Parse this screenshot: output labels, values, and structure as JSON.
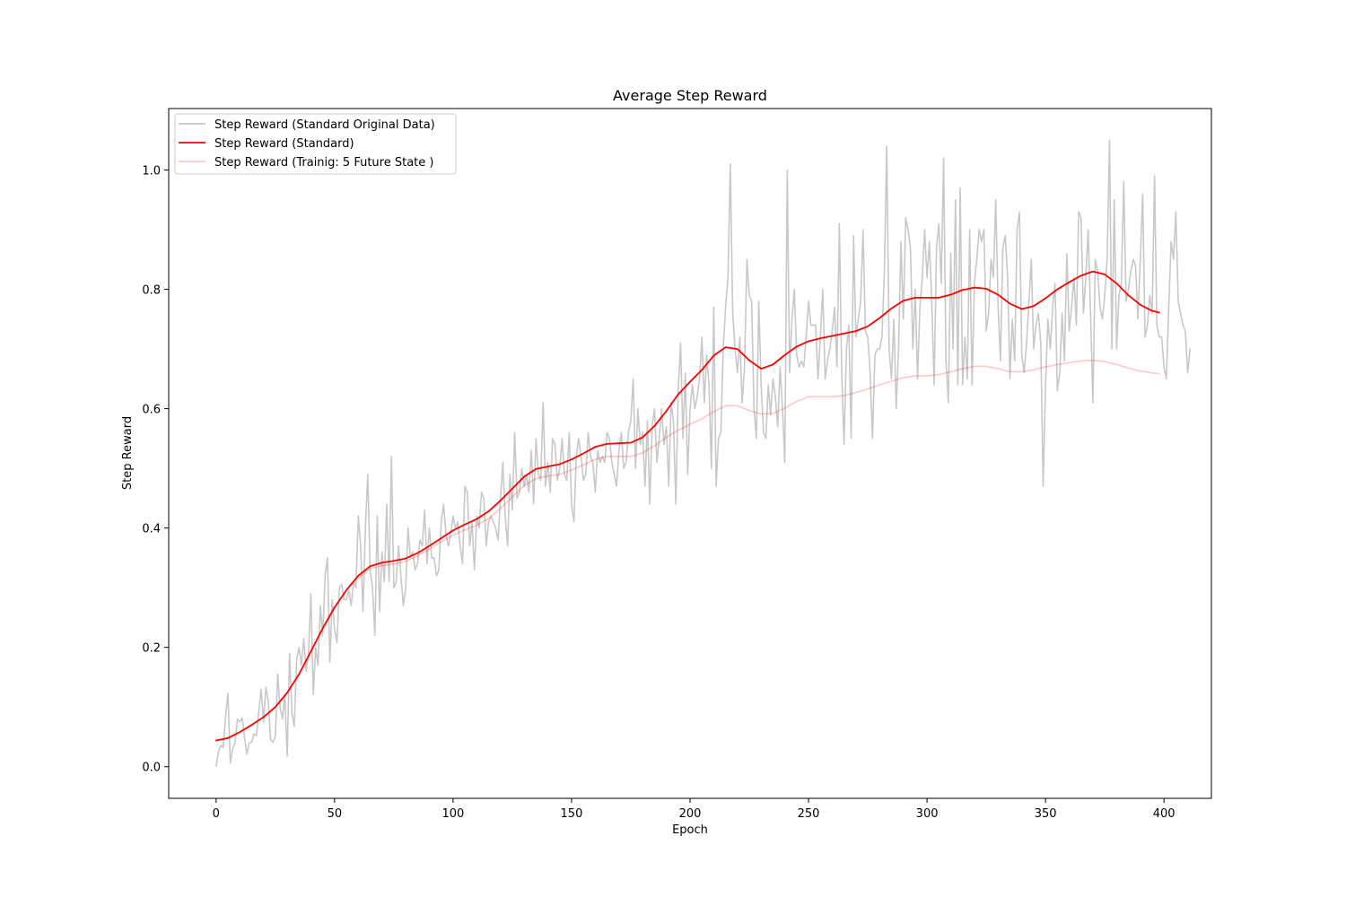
{
  "chart_data": {
    "type": "line",
    "title": "Average Step Reward",
    "xlabel": "Epoch",
    "ylabel": "Step Reward",
    "xlim": [
      -20,
      420
    ],
    "ylim": [
      -0.053,
      1.103
    ],
    "xticks": [
      0,
      50,
      100,
      150,
      200,
      250,
      300,
      350,
      400
    ],
    "xtick_labels": [
      "0",
      "50",
      "100",
      "150",
      "200",
      "250",
      "300",
      "350",
      "400"
    ],
    "yticks": [
      0.0,
      0.2,
      0.4,
      0.6,
      0.8,
      1.0
    ],
    "ytick_labels": [
      "0.0",
      "0.2",
      "0.4",
      "0.6",
      "0.8",
      "1.0"
    ],
    "grid": false,
    "legend_position": "upper-left",
    "series": [
      {
        "name": "Step Reward (Standard Original Data)",
        "color": "#c8c8c8",
        "x_start": 0,
        "x_step": 1,
        "values": [
          0.001,
          0.025,
          0.036,
          0.032,
          0.085,
          0.123,
          0.006,
          0.03,
          0.04,
          0.08,
          0.075,
          0.082,
          0.05,
          0.021,
          0.04,
          0.041,
          0.055,
          0.052,
          0.091,
          0.13,
          0.075,
          0.133,
          0.11,
          0.045,
          0.041,
          0.05,
          0.155,
          0.1,
          0.08,
          0.12,
          0.018,
          0.19,
          0.09,
          0.068,
          0.18,
          0.2,
          0.17,
          0.215,
          0.16,
          0.19,
          0.29,
          0.121,
          0.2,
          0.17,
          0.27,
          0.22,
          0.32,
          0.35,
          0.175,
          0.28,
          0.23,
          0.208,
          0.3,
          0.306,
          0.28,
          0.28,
          0.295,
          0.27,
          0.31,
          0.3,
          0.42,
          0.37,
          0.26,
          0.4,
          0.49,
          0.33,
          0.3,
          0.22,
          0.42,
          0.26,
          0.36,
          0.31,
          0.44,
          0.31,
          0.52,
          0.3,
          0.31,
          0.37,
          0.32,
          0.27,
          0.3,
          0.4,
          0.35,
          0.36,
          0.33,
          0.34,
          0.38,
          0.37,
          0.43,
          0.34,
          0.4,
          0.35,
          0.35,
          0.32,
          0.33,
          0.41,
          0.44,
          0.39,
          0.37,
          0.39,
          0.42,
          0.4,
          0.41,
          0.37,
          0.34,
          0.47,
          0.46,
          0.37,
          0.41,
          0.33,
          0.42,
          0.4,
          0.46,
          0.45,
          0.37,
          0.41,
          0.42,
          0.41,
          0.4,
          0.38,
          0.45,
          0.51,
          0.42,
          0.37,
          0.49,
          0.43,
          0.56,
          0.45,
          0.46,
          0.5,
          0.47,
          0.49,
          0.46,
          0.53,
          0.44,
          0.55,
          0.49,
          0.48,
          0.61,
          0.47,
          0.51,
          0.46,
          0.55,
          0.54,
          0.48,
          0.5,
          0.55,
          0.49,
          0.48,
          0.56,
          0.44,
          0.41,
          0.52,
          0.55,
          0.52,
          0.48,
          0.49,
          0.56,
          0.52,
          0.51,
          0.46,
          0.53,
          0.51,
          0.52,
          0.51,
          0.56,
          0.55,
          0.51,
          0.49,
          0.47,
          0.53,
          0.56,
          0.5,
          0.51,
          0.56,
          0.58,
          0.65,
          0.5,
          0.6,
          0.54,
          0.56,
          0.47,
          0.58,
          0.44,
          0.57,
          0.6,
          0.51,
          0.55,
          0.6,
          0.54,
          0.57,
          0.47,
          0.61,
          0.58,
          0.44,
          0.63,
          0.71,
          0.55,
          0.66,
          0.49,
          0.6,
          0.64,
          0.6,
          0.62,
          0.65,
          0.72,
          0.61,
          0.69,
          0.64,
          0.5,
          0.77,
          0.47,
          0.55,
          0.56,
          0.7,
          0.77,
          0.82,
          1.01,
          0.76,
          0.7,
          0.66,
          0.72,
          0.61,
          0.67,
          0.85,
          0.79,
          0.78,
          0.6,
          0.55,
          0.78,
          0.64,
          0.56,
          0.55,
          0.64,
          0.59,
          0.65,
          0.62,
          0.57,
          0.67,
          0.6,
          0.51,
          1.0,
          0.66,
          0.75,
          0.8,
          0.69,
          0.67,
          0.68,
          0.67,
          0.72,
          0.78,
          0.74,
          0.74,
          0.74,
          0.65,
          0.72,
          0.8,
          0.65,
          0.68,
          0.7,
          0.73,
          0.77,
          0.67,
          0.91,
          0.66,
          0.54,
          0.7,
          0.74,
          0.55,
          0.89,
          0.72,
          0.75,
          0.78,
          0.9,
          0.73,
          0.72,
          0.66,
          0.55,
          0.69,
          0.7,
          0.7,
          0.72,
          0.83,
          1.04,
          0.7,
          0.65,
          0.75,
          0.6,
          0.7,
          0.88,
          0.75,
          0.92,
          0.9,
          0.87,
          0.7,
          0.8,
          0.65,
          0.77,
          0.82,
          0.9,
          0.82,
          0.88,
          0.78,
          0.64,
          0.87,
          0.91,
          0.81,
          1.02,
          0.68,
          0.61,
          0.86,
          0.7,
          0.95,
          0.64,
          0.97,
          0.64,
          0.72,
          0.65,
          0.9,
          0.64,
          0.81,
          0.85,
          0.9,
          0.88,
          0.9,
          0.73,
          0.76,
          0.85,
          0.82,
          0.95,
          0.77,
          0.68,
          0.87,
          0.89,
          0.82,
          0.65,
          0.75,
          0.68,
          0.9,
          0.93,
          0.69,
          0.66,
          0.71,
          0.78,
          0.85,
          0.7,
          0.74,
          0.76,
          0.71,
          0.47,
          0.64,
          0.75,
          0.7,
          0.77,
          0.81,
          0.63,
          0.66,
          0.76,
          0.68,
          0.86,
          0.73,
          0.77,
          0.82,
          0.74,
          0.93,
          0.92,
          0.76,
          0.82,
          0.9,
          0.76,
          0.61,
          0.85,
          0.83,
          0.77,
          0.75,
          0.79,
          0.85,
          1.05,
          0.7,
          0.95,
          0.7,
          0.79,
          0.81,
          0.98,
          0.78,
          0.8,
          0.83,
          0.85,
          0.84,
          0.75,
          0.85,
          0.96,
          0.72,
          0.74,
          0.79,
          0.76,
          0.99,
          0.74,
          0.72,
          0.72,
          0.67,
          0.65,
          0.77,
          0.88,
          0.85,
          0.93,
          0.78,
          0.76,
          0.74,
          0.73,
          0.66,
          0.7
        ]
      },
      {
        "name": "Step Reward (Standard)",
        "color": "#ff0000",
        "x": [
          0,
          5,
          10,
          15,
          20,
          25,
          30,
          35,
          40,
          45,
          50,
          55,
          60,
          65,
          70,
          75,
          80,
          85,
          90,
          95,
          100,
          105,
          110,
          115,
          120,
          125,
          130,
          135,
          140,
          145,
          150,
          155,
          160,
          165,
          170,
          175,
          180,
          185,
          190,
          195,
          200,
          205,
          210,
          215,
          220,
          225,
          230,
          235,
          240,
          245,
          250,
          255,
          260,
          265,
          270,
          275,
          280,
          285,
          290,
          295,
          300,
          305,
          310,
          315,
          320,
          325,
          330,
          335,
          340,
          345,
          350,
          355,
          360,
          365,
          370,
          375,
          380,
          385,
          390,
          395,
          398
        ],
        "values": [
          0.044,
          0.048,
          0.058,
          0.07,
          0.083,
          0.1,
          0.124,
          0.155,
          0.193,
          0.232,
          0.267,
          0.296,
          0.32,
          0.336,
          0.342,
          0.345,
          0.349,
          0.358,
          0.37,
          0.383,
          0.396,
          0.406,
          0.415,
          0.428,
          0.446,
          0.466,
          0.486,
          0.499,
          0.503,
          0.507,
          0.515,
          0.525,
          0.536,
          0.541,
          0.542,
          0.543,
          0.552,
          0.571,
          0.596,
          0.624,
          0.645,
          0.665,
          0.689,
          0.703,
          0.7,
          0.681,
          0.667,
          0.674,
          0.69,
          0.704,
          0.713,
          0.718,
          0.722,
          0.726,
          0.73,
          0.738,
          0.752,
          0.768,
          0.781,
          0.786,
          0.786,
          0.786,
          0.791,
          0.799,
          0.803,
          0.801,
          0.791,
          0.776,
          0.767,
          0.772,
          0.785,
          0.8,
          0.812,
          0.823,
          0.83,
          0.825,
          0.81,
          0.79,
          0.774,
          0.764,
          0.761
        ]
      },
      {
        "name": "Step Reward (Trainig: 5 Future State )",
        "color": "#ff0000",
        "x": [
          60,
          65,
          70,
          75,
          80,
          85,
          90,
          95,
          100,
          105,
          110,
          115,
          120,
          125,
          130,
          135,
          140,
          145,
          150,
          155,
          160,
          165,
          170,
          175,
          180,
          185,
          190,
          195,
          200,
          205,
          210,
          215,
          220,
          225,
          230,
          235,
          240,
          245,
          250,
          255,
          260,
          265,
          270,
          275,
          280,
          285,
          290,
          295,
          300,
          305,
          310,
          315,
          320,
          325,
          330,
          335,
          340,
          345,
          350,
          355,
          360,
          365,
          370,
          375,
          380,
          385,
          390,
          395,
          398
        ],
        "values": [
          0.315,
          0.332,
          0.337,
          0.34,
          0.344,
          0.353,
          0.365,
          0.377,
          0.388,
          0.397,
          0.405,
          0.416,
          0.433,
          0.452,
          0.471,
          0.483,
          0.487,
          0.49,
          0.497,
          0.506,
          0.515,
          0.52,
          0.52,
          0.52,
          0.526,
          0.538,
          0.552,
          0.564,
          0.574,
          0.583,
          0.595,
          0.605,
          0.605,
          0.597,
          0.591,
          0.592,
          0.601,
          0.612,
          0.62,
          0.62,
          0.62,
          0.622,
          0.627,
          0.633,
          0.64,
          0.646,
          0.652,
          0.655,
          0.655,
          0.657,
          0.662,
          0.667,
          0.671,
          0.671,
          0.667,
          0.662,
          0.662,
          0.665,
          0.67,
          0.674,
          0.677,
          0.68,
          0.681,
          0.679,
          0.674,
          0.668,
          0.663,
          0.66,
          0.659
        ]
      }
    ]
  }
}
